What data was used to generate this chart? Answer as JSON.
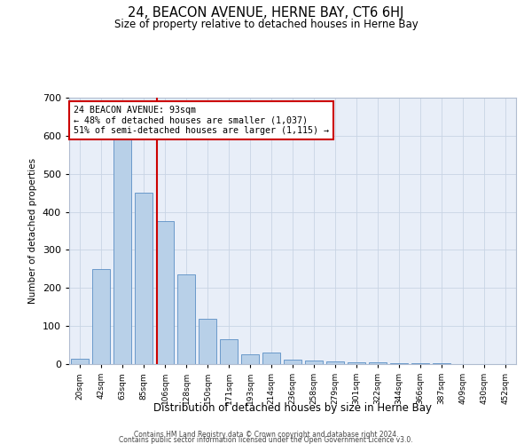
{
  "title": "24, BEACON AVENUE, HERNE BAY, CT6 6HJ",
  "subtitle": "Size of property relative to detached houses in Herne Bay",
  "xlabel": "Distribution of detached houses by size in Herne Bay",
  "ylabel": "Number of detached properties",
  "categories": [
    "20sqm",
    "42sqm",
    "63sqm",
    "85sqm",
    "106sqm",
    "128sqm",
    "150sqm",
    "171sqm",
    "193sqm",
    "214sqm",
    "236sqm",
    "258sqm",
    "279sqm",
    "301sqm",
    "322sqm",
    "344sqm",
    "366sqm",
    "387sqm",
    "409sqm",
    "430sqm",
    "452sqm"
  ],
  "values": [
    15,
    250,
    590,
    450,
    375,
    235,
    120,
    65,
    25,
    30,
    12,
    10,
    8,
    5,
    5,
    3,
    2,
    2,
    1,
    1,
    1
  ],
  "bar_color": "#b8d0e8",
  "bar_edge_color": "#5b8fc4",
  "vline_color": "#cc0000",
  "annotation_line1": "24 BEACON AVENUE: 93sqm",
  "annotation_line2": "← 48% of detached houses are smaller (1,037)",
  "annotation_line3": "51% of semi-detached houses are larger (1,115) →",
  "annotation_box_color": "#ffffff",
  "annotation_box_edge_color": "#cc0000",
  "ylim": [
    0,
    700
  ],
  "yticks": [
    0,
    100,
    200,
    300,
    400,
    500,
    600,
    700
  ],
  "footer1": "Contains HM Land Registry data © Crown copyright and database right 2024.",
  "footer2": "Contains public sector information licensed under the Open Government Licence v3.0.",
  "background_color": "#e8eef8",
  "vline_pos": 3.62
}
